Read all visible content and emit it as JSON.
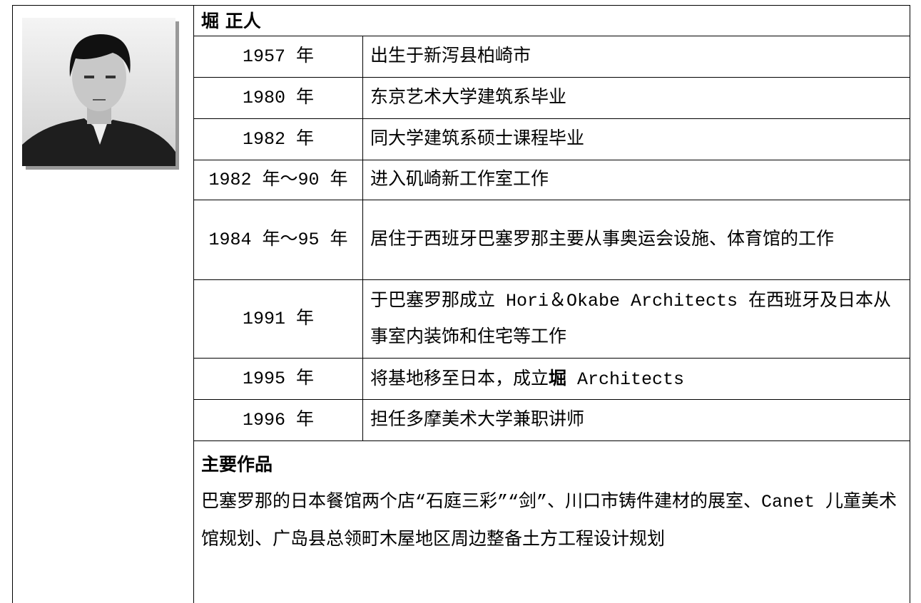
{
  "header": {
    "name": "堀 正人"
  },
  "table": {
    "rows": [
      [
        "1957 年",
        "出生于新泻县柏崎市"
      ],
      [
        "1980 年",
        "东京艺术大学建筑系毕业"
      ],
      [
        "1982 年",
        "同大学建筑系硕士课程毕业"
      ],
      [
        "1982 年～90 年",
        "进入矶崎新工作室工作"
      ],
      [
        "1984 年～95 年",
        "居住于西班牙巴塞罗那主要从事奥运会设施、体育馆的工作"
      ],
      [
        "1991 年",
        "于巴塞罗那成立 Hori＆Okabe Architects 在西班牙及日本从事室内装饰和住宅等工作"
      ],
      [
        "1995 年",
        {
          "before": "将基地移至日本，成立",
          "bold": "堀",
          "after": " Architects"
        }
      ],
      [
        "1996 年",
        "担任多摩美术大学兼职讲师"
      ]
    ]
  },
  "works": {
    "heading": "主要作品",
    "text": "巴塞罗那的日本餐馆两个店“石庭三彩”“剑”、川口市铸件建材的展室、Canet 儿童美术馆规划、广岛县总领町木屋地区周边整备土方工程设计规划"
  }
}
